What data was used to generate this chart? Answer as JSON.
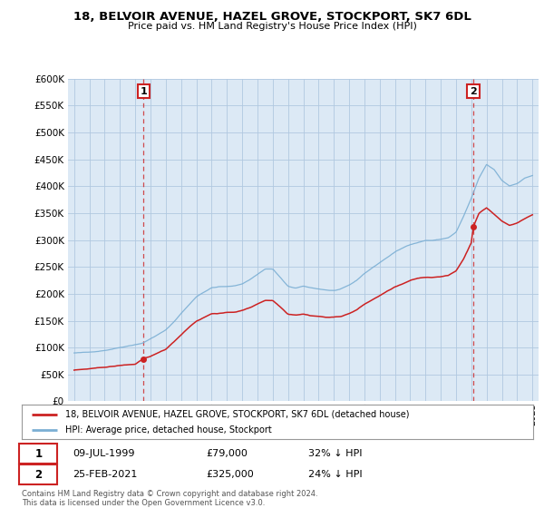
{
  "title": "18, BELVOIR AVENUE, HAZEL GROVE, STOCKPORT, SK7 6DL",
  "subtitle": "Price paid vs. HM Land Registry's House Price Index (HPI)",
  "legend_line1": "18, BELVOIR AVENUE, HAZEL GROVE, STOCKPORT, SK7 6DL (detached house)",
  "legend_line2": "HPI: Average price, detached house, Stockport",
  "annotation1_date": "09-JUL-1999",
  "annotation1_price": "£79,000",
  "annotation1_hpi": "32% ↓ HPI",
  "annotation2_date": "25-FEB-2021",
  "annotation2_price": "£325,000",
  "annotation2_hpi": "24% ↓ HPI",
  "footer": "Contains HM Land Registry data © Crown copyright and database right 2024.\nThis data is licensed under the Open Government Licence v3.0.",
  "hpi_color": "#7bafd4",
  "price_color": "#cc2222",
  "background_color": "#ffffff",
  "chart_bg_color": "#dce9f5",
  "grid_color": "#b0c8e0",
  "ylim": [
    0,
    600000
  ],
  "yticks": [
    0,
    50000,
    100000,
    150000,
    200000,
    250000,
    300000,
    350000,
    400000,
    450000,
    500000,
    550000,
    600000
  ],
  "point1_x": 1999.54,
  "point1_y": 79000,
  "point2_x": 2021.13,
  "point2_y": 325000,
  "xlim_left": 1994.6,
  "xlim_right": 2025.4,
  "hpi_anchors_x": [
    1995.0,
    1995.5,
    1996.0,
    1996.5,
    1997.0,
    1997.5,
    1998.0,
    1998.5,
    1999.0,
    1999.5,
    2000.0,
    2000.5,
    2001.0,
    2001.5,
    2002.0,
    2002.5,
    2003.0,
    2003.5,
    2004.0,
    2004.5,
    2005.0,
    2005.5,
    2006.0,
    2006.5,
    2007.0,
    2007.5,
    2008.0,
    2008.5,
    2009.0,
    2009.5,
    2010.0,
    2010.5,
    2011.0,
    2011.5,
    2012.0,
    2012.5,
    2013.0,
    2013.5,
    2014.0,
    2014.5,
    2015.0,
    2015.5,
    2016.0,
    2016.5,
    2017.0,
    2017.5,
    2018.0,
    2018.5,
    2019.0,
    2019.5,
    2020.0,
    2020.5,
    2021.0,
    2021.5,
    2022.0,
    2022.5,
    2023.0,
    2023.5,
    2024.0,
    2024.5,
    2025.0
  ],
  "hpi_anchors_y": [
    90000,
    90500,
    91000,
    93000,
    95000,
    98000,
    101000,
    104000,
    107000,
    110000,
    118000,
    126000,
    134000,
    148000,
    165000,
    180000,
    196000,
    205000,
    213000,
    215000,
    215000,
    216000,
    220000,
    228000,
    238000,
    248000,
    248000,
    232000,
    215000,
    212000,
    215000,
    212000,
    210000,
    208000,
    207000,
    210000,
    216000,
    225000,
    238000,
    248000,
    258000,
    268000,
    278000,
    285000,
    292000,
    296000,
    300000,
    300000,
    302000,
    305000,
    315000,
    345000,
    378000,
    415000,
    440000,
    430000,
    410000,
    400000,
    405000,
    415000,
    420000
  ],
  "prop_anchors_x": [
    1995.0,
    1995.5,
    1996.0,
    1996.5,
    1997.0,
    1997.5,
    1998.0,
    1998.5,
    1999.0,
    1999.54,
    2000.0,
    2000.5,
    2001.0,
    2001.5,
    2002.0,
    2002.5,
    2003.0,
    2003.5,
    2004.0,
    2004.5,
    2005.0,
    2005.5,
    2006.0,
    2006.5,
    2007.0,
    2007.5,
    2008.0,
    2008.5,
    2009.0,
    2009.5,
    2010.0,
    2010.5,
    2011.0,
    2011.5,
    2012.0,
    2012.5,
    2013.0,
    2013.5,
    2014.0,
    2014.5,
    2015.0,
    2015.5,
    2016.0,
    2016.5,
    2017.0,
    2017.5,
    2018.0,
    2018.5,
    2019.0,
    2019.5,
    2020.0,
    2020.5,
    2021.0,
    2021.13,
    2021.5,
    2022.0,
    2022.5,
    2023.0,
    2023.5,
    2024.0,
    2024.5,
    2025.0
  ],
  "prop_anchors_y": [
    58000,
    59000,
    60000,
    61000,
    62500,
    64000,
    65500,
    67000,
    68000,
    79000,
    82000,
    88000,
    95000,
    108000,
    122000,
    136000,
    148000,
    155000,
    162000,
    163000,
    164000,
    165000,
    168000,
    173000,
    180000,
    187000,
    187000,
    175000,
    162000,
    161000,
    163000,
    160000,
    159000,
    157000,
    157000,
    159000,
    164000,
    171000,
    181000,
    189000,
    197000,
    205000,
    213000,
    218000,
    224000,
    228000,
    230000,
    230000,
    232000,
    234000,
    242000,
    265000,
    295000,
    325000,
    350000,
    360000,
    348000,
    335000,
    327000,
    332000,
    340000,
    347000
  ]
}
